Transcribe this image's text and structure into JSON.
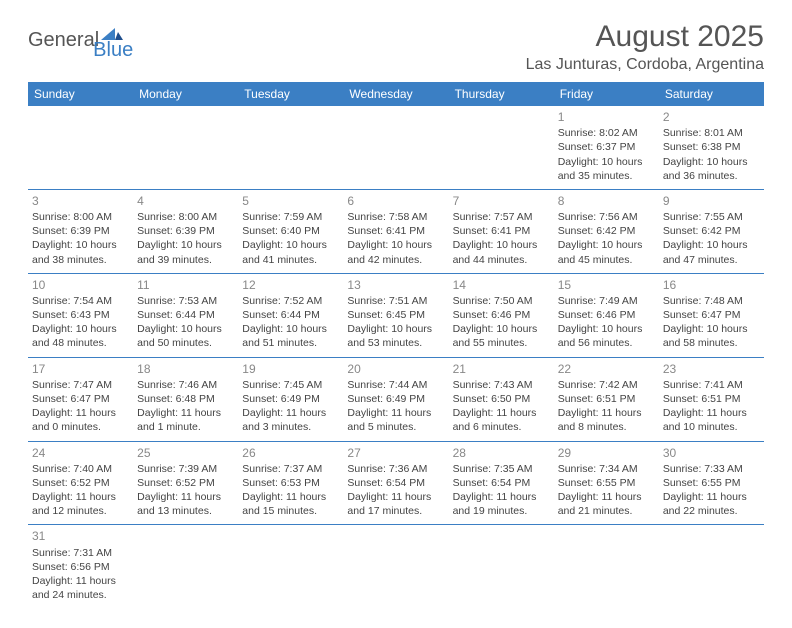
{
  "logo": {
    "text1": "General",
    "text2": "Blue"
  },
  "header": {
    "title": "August 2025",
    "location": "Las Junturas, Cordoba, Argentina"
  },
  "colors": {
    "header_bg": "#3b7fc4",
    "header_fg": "#ffffff",
    "rule": "#3b7fc4",
    "text": "#444444",
    "daynum": "#888888"
  },
  "day_names": [
    "Sunday",
    "Monday",
    "Tuesday",
    "Wednesday",
    "Thursday",
    "Friday",
    "Saturday"
  ],
  "weeks": [
    [
      null,
      null,
      null,
      null,
      null,
      {
        "n": "1",
        "sr": "Sunrise: 8:02 AM",
        "ss": "Sunset: 6:37 PM",
        "dl1": "Daylight: 10 hours",
        "dl2": "and 35 minutes."
      },
      {
        "n": "2",
        "sr": "Sunrise: 8:01 AM",
        "ss": "Sunset: 6:38 PM",
        "dl1": "Daylight: 10 hours",
        "dl2": "and 36 minutes."
      }
    ],
    [
      {
        "n": "3",
        "sr": "Sunrise: 8:00 AM",
        "ss": "Sunset: 6:39 PM",
        "dl1": "Daylight: 10 hours",
        "dl2": "and 38 minutes."
      },
      {
        "n": "4",
        "sr": "Sunrise: 8:00 AM",
        "ss": "Sunset: 6:39 PM",
        "dl1": "Daylight: 10 hours",
        "dl2": "and 39 minutes."
      },
      {
        "n": "5",
        "sr": "Sunrise: 7:59 AM",
        "ss": "Sunset: 6:40 PM",
        "dl1": "Daylight: 10 hours",
        "dl2": "and 41 minutes."
      },
      {
        "n": "6",
        "sr": "Sunrise: 7:58 AM",
        "ss": "Sunset: 6:41 PM",
        "dl1": "Daylight: 10 hours",
        "dl2": "and 42 minutes."
      },
      {
        "n": "7",
        "sr": "Sunrise: 7:57 AM",
        "ss": "Sunset: 6:41 PM",
        "dl1": "Daylight: 10 hours",
        "dl2": "and 44 minutes."
      },
      {
        "n": "8",
        "sr": "Sunrise: 7:56 AM",
        "ss": "Sunset: 6:42 PM",
        "dl1": "Daylight: 10 hours",
        "dl2": "and 45 minutes."
      },
      {
        "n": "9",
        "sr": "Sunrise: 7:55 AM",
        "ss": "Sunset: 6:42 PM",
        "dl1": "Daylight: 10 hours",
        "dl2": "and 47 minutes."
      }
    ],
    [
      {
        "n": "10",
        "sr": "Sunrise: 7:54 AM",
        "ss": "Sunset: 6:43 PM",
        "dl1": "Daylight: 10 hours",
        "dl2": "and 48 minutes."
      },
      {
        "n": "11",
        "sr": "Sunrise: 7:53 AM",
        "ss": "Sunset: 6:44 PM",
        "dl1": "Daylight: 10 hours",
        "dl2": "and 50 minutes."
      },
      {
        "n": "12",
        "sr": "Sunrise: 7:52 AM",
        "ss": "Sunset: 6:44 PM",
        "dl1": "Daylight: 10 hours",
        "dl2": "and 51 minutes."
      },
      {
        "n": "13",
        "sr": "Sunrise: 7:51 AM",
        "ss": "Sunset: 6:45 PM",
        "dl1": "Daylight: 10 hours",
        "dl2": "and 53 minutes."
      },
      {
        "n": "14",
        "sr": "Sunrise: 7:50 AM",
        "ss": "Sunset: 6:46 PM",
        "dl1": "Daylight: 10 hours",
        "dl2": "and 55 minutes."
      },
      {
        "n": "15",
        "sr": "Sunrise: 7:49 AM",
        "ss": "Sunset: 6:46 PM",
        "dl1": "Daylight: 10 hours",
        "dl2": "and 56 minutes."
      },
      {
        "n": "16",
        "sr": "Sunrise: 7:48 AM",
        "ss": "Sunset: 6:47 PM",
        "dl1": "Daylight: 10 hours",
        "dl2": "and 58 minutes."
      }
    ],
    [
      {
        "n": "17",
        "sr": "Sunrise: 7:47 AM",
        "ss": "Sunset: 6:47 PM",
        "dl1": "Daylight: 11 hours",
        "dl2": "and 0 minutes."
      },
      {
        "n": "18",
        "sr": "Sunrise: 7:46 AM",
        "ss": "Sunset: 6:48 PM",
        "dl1": "Daylight: 11 hours",
        "dl2": "and 1 minute."
      },
      {
        "n": "19",
        "sr": "Sunrise: 7:45 AM",
        "ss": "Sunset: 6:49 PM",
        "dl1": "Daylight: 11 hours",
        "dl2": "and 3 minutes."
      },
      {
        "n": "20",
        "sr": "Sunrise: 7:44 AM",
        "ss": "Sunset: 6:49 PM",
        "dl1": "Daylight: 11 hours",
        "dl2": "and 5 minutes."
      },
      {
        "n": "21",
        "sr": "Sunrise: 7:43 AM",
        "ss": "Sunset: 6:50 PM",
        "dl1": "Daylight: 11 hours",
        "dl2": "and 6 minutes."
      },
      {
        "n": "22",
        "sr": "Sunrise: 7:42 AM",
        "ss": "Sunset: 6:51 PM",
        "dl1": "Daylight: 11 hours",
        "dl2": "and 8 minutes."
      },
      {
        "n": "23",
        "sr": "Sunrise: 7:41 AM",
        "ss": "Sunset: 6:51 PM",
        "dl1": "Daylight: 11 hours",
        "dl2": "and 10 minutes."
      }
    ],
    [
      {
        "n": "24",
        "sr": "Sunrise: 7:40 AM",
        "ss": "Sunset: 6:52 PM",
        "dl1": "Daylight: 11 hours",
        "dl2": "and 12 minutes."
      },
      {
        "n": "25",
        "sr": "Sunrise: 7:39 AM",
        "ss": "Sunset: 6:52 PM",
        "dl1": "Daylight: 11 hours",
        "dl2": "and 13 minutes."
      },
      {
        "n": "26",
        "sr": "Sunrise: 7:37 AM",
        "ss": "Sunset: 6:53 PM",
        "dl1": "Daylight: 11 hours",
        "dl2": "and 15 minutes."
      },
      {
        "n": "27",
        "sr": "Sunrise: 7:36 AM",
        "ss": "Sunset: 6:54 PM",
        "dl1": "Daylight: 11 hours",
        "dl2": "and 17 minutes."
      },
      {
        "n": "28",
        "sr": "Sunrise: 7:35 AM",
        "ss": "Sunset: 6:54 PM",
        "dl1": "Daylight: 11 hours",
        "dl2": "and 19 minutes."
      },
      {
        "n": "29",
        "sr": "Sunrise: 7:34 AM",
        "ss": "Sunset: 6:55 PM",
        "dl1": "Daylight: 11 hours",
        "dl2": "and 21 minutes."
      },
      {
        "n": "30",
        "sr": "Sunrise: 7:33 AM",
        "ss": "Sunset: 6:55 PM",
        "dl1": "Daylight: 11 hours",
        "dl2": "and 22 minutes."
      }
    ],
    [
      {
        "n": "31",
        "sr": "Sunrise: 7:31 AM",
        "ss": "Sunset: 6:56 PM",
        "dl1": "Daylight: 11 hours",
        "dl2": "and 24 minutes."
      },
      null,
      null,
      null,
      null,
      null,
      null
    ]
  ]
}
